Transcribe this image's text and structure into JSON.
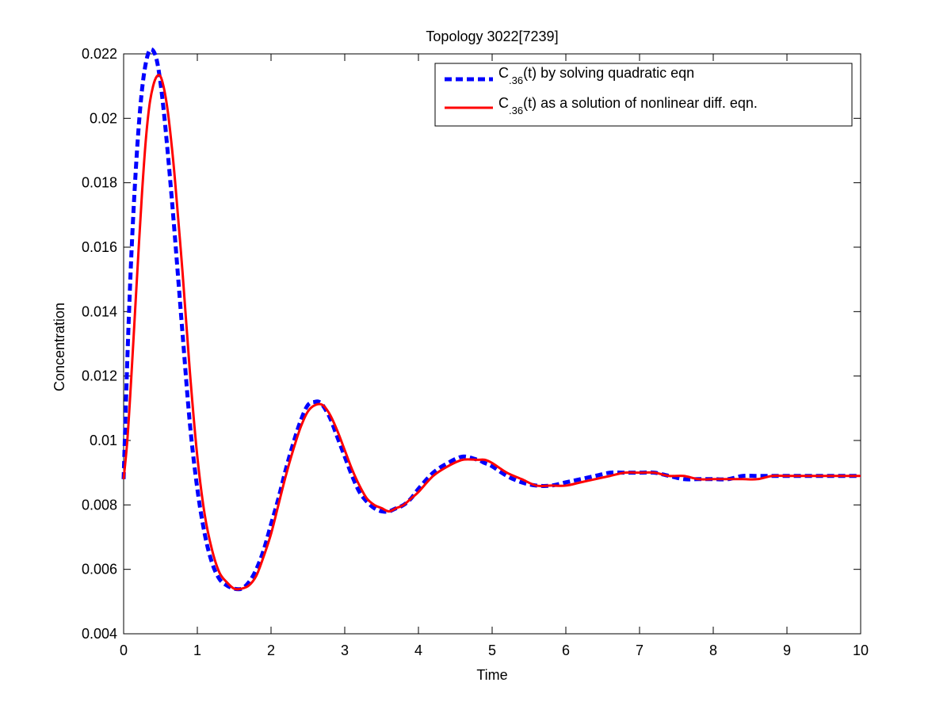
{
  "chart_data": {
    "type": "line",
    "title": "Topology 3022[7239]",
    "xlabel": "Time",
    "ylabel": "Concentration",
    "xlim": [
      0,
      10
    ],
    "ylim": [
      0.004,
      0.022
    ],
    "xticks": [
      0,
      1,
      2,
      3,
      4,
      5,
      6,
      7,
      8,
      9,
      10
    ],
    "xtick_labels": [
      "0",
      "1",
      "2",
      "3",
      "4",
      "5",
      "6",
      "7",
      "8",
      "9",
      "10"
    ],
    "yticks": [
      0.004,
      0.006,
      0.008,
      0.01,
      0.012,
      0.014,
      0.016,
      0.018,
      0.02,
      0.022
    ],
    "ytick_labels": [
      "0.004",
      "0.006",
      "0.008",
      "0.01",
      "0.012",
      "0.014",
      "0.016",
      "0.018",
      "0.02",
      "0.022"
    ],
    "grid": false,
    "legend_position": "top-right",
    "series": [
      {
        "name_main": "C",
        "name_sub": ".36",
        "name_rest": "(t) by solving quadratic eqn",
        "color": "#0000ff",
        "style": "dashed",
        "x": [
          0,
          0.05,
          0.1,
          0.15,
          0.2,
          0.25,
          0.3,
          0.35,
          0.4,
          0.45,
          0.5,
          0.55,
          0.6,
          0.65,
          0.7,
          0.8,
          0.9,
          1.0,
          1.1,
          1.2,
          1.3,
          1.4,
          1.5,
          1.6,
          1.7,
          1.8,
          1.9,
          2.0,
          2.1,
          2.2,
          2.3,
          2.4,
          2.5,
          2.6,
          2.65,
          2.7,
          2.8,
          2.9,
          3.0,
          3.1,
          3.2,
          3.3,
          3.4,
          3.5,
          3.6,
          3.7,
          3.8,
          3.9,
          4.0,
          4.2,
          4.4,
          4.6,
          4.8,
          4.9,
          5.0,
          5.2,
          5.4,
          5.6,
          5.8,
          6.0,
          6.2,
          6.4,
          6.6,
          6.8,
          7.0,
          7.2,
          7.4,
          7.6,
          7.8,
          8.0,
          8.2,
          8.4,
          8.6,
          8.8,
          9.0,
          9.2,
          9.4,
          9.6,
          9.8,
          10.0
        ],
        "y": [
          0.0088,
          0.0125,
          0.0155,
          0.0178,
          0.0196,
          0.0209,
          0.0217,
          0.0221,
          0.0221,
          0.0218,
          0.0211,
          0.0201,
          0.0189,
          0.0176,
          0.0162,
          0.0133,
          0.0105,
          0.0085,
          0.0071,
          0.0062,
          0.0057,
          0.0055,
          0.0054,
          0.0054,
          0.0056,
          0.006,
          0.0066,
          0.0074,
          0.0082,
          0.0091,
          0.0099,
          0.0106,
          0.0111,
          0.0112,
          0.0112,
          0.0111,
          0.0107,
          0.0101,
          0.0095,
          0.0089,
          0.0084,
          0.0081,
          0.0079,
          0.0078,
          0.0078,
          0.0079,
          0.008,
          0.0082,
          0.0085,
          0.009,
          0.0093,
          0.0095,
          0.0094,
          0.0093,
          0.0092,
          0.0089,
          0.0087,
          0.0086,
          0.0086,
          0.0087,
          0.0088,
          0.0089,
          0.009,
          0.009,
          0.009,
          0.009,
          0.0089,
          0.0088,
          0.0088,
          0.0088,
          0.0088,
          0.0089,
          0.0089,
          0.0089,
          0.0089,
          0.0089,
          0.0089,
          0.0089,
          0.0089,
          0.0089
        ]
      },
      {
        "name_main": "C",
        "name_sub": ".36",
        "name_rest": "(t) as a solution of nonlinear diff. eqn.",
        "color": "#ff0000",
        "style": "solid",
        "x": [
          0,
          0.05,
          0.1,
          0.15,
          0.2,
          0.25,
          0.3,
          0.35,
          0.4,
          0.45,
          0.5,
          0.55,
          0.6,
          0.65,
          0.7,
          0.8,
          0.9,
          1.0,
          1.1,
          1.2,
          1.3,
          1.4,
          1.5,
          1.6,
          1.7,
          1.8,
          1.9,
          2.0,
          2.1,
          2.2,
          2.3,
          2.4,
          2.5,
          2.6,
          2.7,
          2.8,
          2.9,
          3.0,
          3.1,
          3.2,
          3.3,
          3.4,
          3.5,
          3.6,
          3.7,
          3.8,
          3.9,
          4.0,
          4.2,
          4.4,
          4.6,
          4.8,
          4.9,
          5.0,
          5.2,
          5.4,
          5.6,
          5.8,
          6.0,
          6.2,
          6.4,
          6.6,
          6.8,
          7.0,
          7.2,
          7.4,
          7.6,
          7.8,
          8.0,
          8.2,
          8.4,
          8.6,
          8.8,
          9.0,
          9.2,
          9.4,
          9.6,
          9.8,
          10.0
        ],
        "y": [
          0.0088,
          0.01,
          0.0118,
          0.0138,
          0.0158,
          0.0177,
          0.0193,
          0.0204,
          0.021,
          0.0213,
          0.0213,
          0.0209,
          0.0202,
          0.0192,
          0.018,
          0.0152,
          0.0121,
          0.0095,
          0.0077,
          0.0066,
          0.0059,
          0.0056,
          0.0054,
          0.0054,
          0.0055,
          0.0058,
          0.0064,
          0.0071,
          0.008,
          0.0089,
          0.0097,
          0.0104,
          0.0109,
          0.0111,
          0.0111,
          0.0108,
          0.0103,
          0.0097,
          0.0091,
          0.0086,
          0.0082,
          0.008,
          0.0079,
          0.0078,
          0.0079,
          0.008,
          0.0082,
          0.0084,
          0.0089,
          0.0092,
          0.0094,
          0.0094,
          0.0094,
          0.0093,
          0.009,
          0.0088,
          0.0086,
          0.0086,
          0.0086,
          0.0087,
          0.0088,
          0.0089,
          0.009,
          0.009,
          0.009,
          0.0089,
          0.0089,
          0.0088,
          0.0088,
          0.0088,
          0.0088,
          0.0088,
          0.0089,
          0.0089,
          0.0089,
          0.0089,
          0.0089,
          0.0089,
          0.0089
        ]
      }
    ]
  }
}
